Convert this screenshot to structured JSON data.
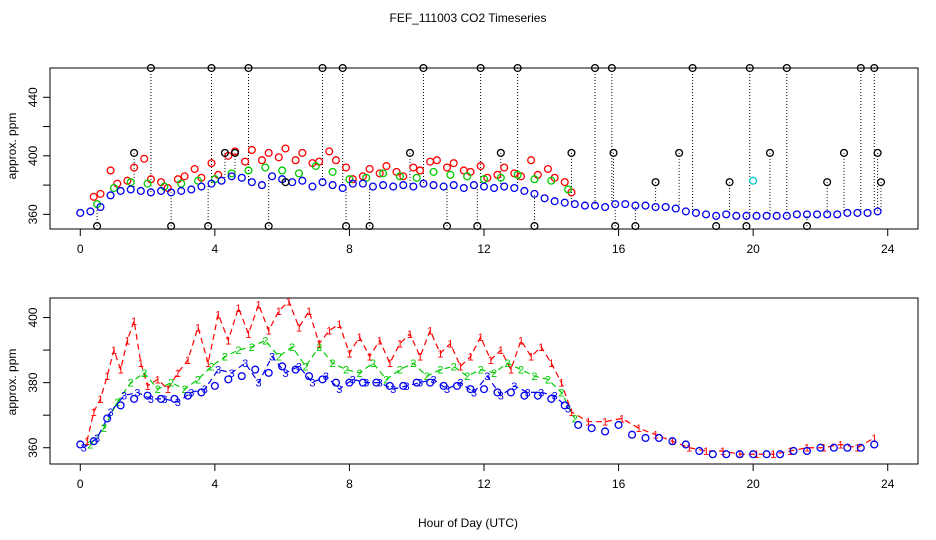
{
  "chart_data": [
    {
      "type": "scatter",
      "panel": "top",
      "title": "FEF_111003  CO2 Timeseries",
      "xlabel": "",
      "ylabel": "approx. ppm",
      "xlim": [
        -0.9,
        24.9
      ],
      "ylim": [
        350,
        460
      ],
      "xticks": [
        0,
        4,
        8,
        12,
        16,
        20,
        24
      ],
      "yticks": [
        360,
        380,
        400,
        420,
        440
      ],
      "yticklabels_shown": [
        "360",
        "400",
        "440"
      ],
      "grid": false,
      "series": [
        {
          "name": "red",
          "color": "#ff0000",
          "marker": "o",
          "x": [
            0.4,
            0.6,
            0.9,
            1.1,
            1.4,
            1.6,
            1.9,
            2.1,
            2.4,
            2.6,
            2.9,
            3.1,
            3.4,
            3.6,
            3.9,
            4.1,
            4.4,
            4.6,
            4.9,
            5.1,
            5.4,
            5.6,
            5.9,
            6.1,
            6.4,
            6.6,
            6.9,
            7.1,
            7.4,
            7.6,
            7.9,
            8.1,
            8.4,
            8.6,
            8.9,
            9.1,
            9.4,
            9.6,
            9.9,
            10.1,
            10.4,
            10.6,
            10.9,
            11.1,
            11.4,
            11.6,
            11.9,
            12.1,
            12.4,
            12.6,
            12.9,
            13.1,
            13.4,
            13.6,
            13.9,
            14.1,
            14.4,
            14.6
          ],
          "y": [
            372,
            374,
            390,
            381,
            383,
            392,
            398,
            384,
            382,
            378,
            384,
            386,
            391,
            385,
            395,
            387,
            400,
            403,
            396,
            404,
            397,
            402,
            399,
            405,
            397,
            402,
            395,
            396,
            403,
            397,
            392,
            384,
            386,
            391,
            388,
            393,
            389,
            386,
            392,
            390,
            396,
            397,
            392,
            395,
            390,
            389,
            393,
            385,
            387,
            392,
            388,
            386,
            397,
            387,
            391,
            385,
            382,
            375
          ]
        },
        {
          "name": "green",
          "color": "#00cc00",
          "marker": "o",
          "x": [
            0.5,
            1.0,
            1.5,
            2.0,
            2.5,
            3.0,
            3.5,
            4.0,
            4.5,
            5.0,
            5.5,
            6.0,
            6.5,
            7.0,
            7.5,
            8.0,
            8.5,
            9.0,
            9.5,
            10.0,
            10.5,
            11.0,
            11.5,
            12.0,
            12.5,
            13.0,
            13.5,
            14.0,
            14.5
          ],
          "y": [
            367,
            378,
            382,
            381,
            379,
            381,
            383,
            384,
            388,
            390,
            392,
            390,
            388,
            393,
            389,
            384,
            385,
            388,
            386,
            385,
            389,
            387,
            386,
            384,
            385,
            387,
            384,
            383,
            377
          ]
        },
        {
          "name": "blue",
          "color": "#0000ee",
          "marker": "o",
          "x": [
            0.0,
            0.3,
            0.6,
            0.9,
            1.2,
            1.5,
            1.8,
            2.1,
            2.4,
            2.7,
            3.0,
            3.3,
            3.6,
            3.9,
            4.2,
            4.5,
            4.8,
            5.1,
            5.4,
            5.7,
            6.0,
            6.3,
            6.6,
            6.9,
            7.2,
            7.5,
            7.8,
            8.1,
            8.4,
            8.7,
            9.0,
            9.3,
            9.6,
            9.9,
            10.2,
            10.5,
            10.8,
            11.1,
            11.4,
            11.7,
            12.0,
            12.3,
            12.6,
            12.9,
            13.2,
            13.5,
            13.8,
            14.1,
            14.4,
            14.7,
            15.0,
            15.3,
            15.6,
            15.9,
            16.2,
            16.5,
            16.8,
            17.1,
            17.4,
            17.7,
            18.0,
            18.3,
            18.6,
            18.9,
            19.2,
            19.5,
            19.8,
            20.1,
            20.4,
            20.7,
            21.0,
            21.3,
            21.6,
            21.9,
            22.2,
            22.5,
            22.8,
            23.1,
            23.4,
            23.7
          ],
          "y": [
            361,
            362,
            365,
            373,
            376,
            377,
            376,
            375,
            376,
            375,
            376,
            377,
            379,
            381,
            383,
            386,
            385,
            382,
            380,
            386,
            384,
            382,
            383,
            379,
            382,
            380,
            378,
            381,
            381,
            379,
            380,
            379,
            380,
            379,
            381,
            380,
            379,
            380,
            378,
            380,
            379,
            378,
            379,
            378,
            376,
            374,
            371,
            369,
            368,
            367,
            366,
            366,
            365,
            367,
            367,
            366,
            366,
            365,
            365,
            364,
            362,
            361,
            360,
            359,
            360,
            359,
            359,
            359,
            359,
            359,
            359,
            360,
            360,
            360,
            360,
            360,
            361,
            361,
            361,
            362
          ]
        },
        {
          "name": "cyan",
          "color": "#00cccc",
          "marker": "o",
          "x": [
            20.0
          ],
          "y": [
            383
          ]
        },
        {
          "name": "black",
          "color": "#000000",
          "marker": "o",
          "x": [
            0.5,
            1.6,
            2.1,
            2.7,
            3.8,
            3.9,
            4.3,
            4.6,
            5.0,
            5.6,
            6.1,
            7.2,
            7.8,
            7.9,
            8.6,
            9.8,
            10.2,
            10.9,
            11.8,
            11.9,
            12.5,
            13.0,
            13.5,
            14.6,
            15.3,
            15.8,
            15.85,
            15.9,
            16.5,
            17.1,
            17.8,
            18.2,
            18.9,
            19.3,
            19.8,
            19.9,
            20.5,
            21.0,
            21.6,
            22.2,
            22.7,
            23.2,
            23.6,
            23.7,
            23.8
          ],
          "y": [
            352,
            402,
            460,
            352,
            352,
            460,
            402,
            402,
            460,
            352,
            382,
            460,
            460,
            352,
            352,
            402,
            460,
            352,
            352,
            460,
            402,
            460,
            352,
            402,
            460,
            460,
            402,
            352,
            352,
            382,
            402,
            460,
            352,
            382,
            352,
            460,
            402,
            460,
            352,
            382,
            402,
            460,
            460,
            402,
            382
          ]
        }
      ]
    },
    {
      "type": "scatter",
      "panel": "bottom",
      "title": "",
      "xlabel": "Hour of Day (UTC)",
      "ylabel": "approx. ppm",
      "xlim": [
        -0.9,
        24.9
      ],
      "ylim": [
        355,
        406
      ],
      "xticks": [
        0,
        4,
        8,
        12,
        16,
        20,
        24
      ],
      "yticks": [
        360,
        370,
        380,
        390,
        400
      ],
      "yticklabels_shown": [
        "360",
        "380",
        "400"
      ],
      "grid": false,
      "series": [
        {
          "name": "1",
          "color": "#ff0000",
          "marker": "1",
          "x": [
            0.2,
            0.4,
            0.6,
            0.8,
            1.0,
            1.2,
            1.4,
            1.6,
            1.8,
            2.0,
            2.3,
            2.6,
            2.9,
            3.2,
            3.5,
            3.8,
            4.1,
            4.4,
            4.7,
            5.0,
            5.3,
            5.6,
            5.9,
            6.2,
            6.5,
            6.8,
            7.1,
            7.4,
            7.7,
            8.0,
            8.3,
            8.6,
            8.9,
            9.2,
            9.5,
            9.8,
            10.1,
            10.4,
            10.7,
            11.0,
            11.3,
            11.6,
            11.9,
            12.2,
            12.5,
            12.8,
            13.1,
            13.4,
            13.7,
            14.0,
            14.3,
            14.6,
            15.1,
            15.6,
            16.1,
            16.6,
            17.1,
            17.6,
            18.1,
            18.6,
            19.1,
            19.6,
            20.1,
            20.6,
            21.1,
            21.6,
            22.1,
            22.6,
            23.1,
            23.6
          ],
          "y": [
            362,
            371,
            375,
            382,
            390,
            384,
            393,
            399,
            386,
            379,
            381,
            378,
            383,
            387,
            397,
            386,
            401,
            393,
            403,
            395,
            404,
            396,
            402,
            405,
            397,
            402,
            392,
            396,
            398,
            389,
            394,
            388,
            393,
            386,
            392,
            395,
            388,
            396,
            389,
            392,
            385,
            388,
            394,
            387,
            390,
            384,
            393,
            388,
            391,
            386,
            380,
            371,
            368,
            368,
            369,
            366,
            364,
            362,
            360,
            359,
            359,
            358,
            358,
            358,
            359,
            360,
            360,
            361,
            360,
            363
          ]
        },
        {
          "name": "2",
          "color": "#00cc00",
          "marker": "2",
          "x": [
            0.3,
            0.7,
            1.1,
            1.5,
            1.9,
            2.3,
            2.7,
            3.1,
            3.5,
            3.9,
            4.3,
            4.7,
            5.1,
            5.5,
            5.9,
            6.3,
            6.7,
            7.1,
            7.5,
            7.9,
            8.3,
            8.7,
            9.1,
            9.5,
            9.9,
            10.3,
            10.7,
            11.1,
            11.5,
            11.9,
            12.3,
            12.7,
            13.1,
            13.5,
            13.9,
            14.3,
            14.7
          ],
          "y": [
            361,
            366,
            374,
            380,
            383,
            378,
            380,
            378,
            381,
            385,
            388,
            390,
            391,
            393,
            388,
            391,
            385,
            391,
            386,
            384,
            383,
            386,
            381,
            384,
            386,
            382,
            384,
            385,
            382,
            384,
            383,
            386,
            384,
            382,
            381,
            377,
            369
          ]
        },
        {
          "name": "3",
          "color": "#0000ee",
          "marker": "3",
          "x": [
            0.1,
            0.5,
            0.9,
            1.3,
            1.7,
            2.1,
            2.5,
            2.9,
            3.3,
            3.7,
            4.1,
            4.5,
            4.9,
            5.3,
            5.7,
            6.1,
            6.5,
            6.9,
            7.3,
            7.7,
            8.1,
            8.5,
            8.9,
            9.3,
            9.7,
            10.1,
            10.5,
            10.9,
            11.3,
            11.7,
            12.1,
            12.5,
            12.9,
            13.3,
            13.7,
            14.1,
            14.5
          ],
          "y": [
            360,
            363,
            371,
            376,
            377,
            375,
            375,
            374,
            377,
            378,
            384,
            383,
            386,
            380,
            388,
            383,
            385,
            380,
            382,
            378,
            381,
            380,
            380,
            378,
            379,
            380,
            381,
            378,
            380,
            377,
            382,
            376,
            379,
            377,
            377,
            376,
            372
          ]
        },
        {
          "name": "blue-circles",
          "color": "#0000ee",
          "marker": "o",
          "x": [
            0.0,
            0.4,
            0.8,
            1.2,
            1.6,
            2.0,
            2.4,
            2.8,
            3.2,
            3.6,
            4.0,
            4.4,
            4.8,
            5.2,
            5.6,
            6.0,
            6.4,
            6.8,
            7.2,
            7.6,
            8.0,
            8.4,
            8.8,
            9.2,
            9.6,
            10.0,
            10.4,
            10.8,
            11.2,
            11.6,
            12.0,
            12.4,
            12.8,
            13.2,
            13.6,
            14.0,
            14.4,
            14.8,
            15.2,
            15.6,
            16.0,
            16.4,
            16.8,
            17.2,
            17.6,
            18.0,
            18.4,
            18.8,
            19.2,
            19.6,
            20.0,
            20.4,
            20.8,
            21.2,
            21.6,
            22.0,
            22.4,
            22.8,
            23.2,
            23.6
          ],
          "y": [
            361,
            362,
            369,
            373,
            375,
            376,
            375,
            375,
            376,
            377,
            379,
            381,
            382,
            384,
            383,
            385,
            384,
            382,
            381,
            380,
            380,
            380,
            380,
            379,
            379,
            380,
            380,
            379,
            379,
            378,
            378,
            377,
            377,
            376,
            376,
            375,
            373,
            367,
            366,
            365,
            367,
            364,
            363,
            363,
            362,
            361,
            359,
            358,
            358,
            358,
            358,
            358,
            358,
            359,
            359,
            360,
            360,
            360,
            360,
            361
          ]
        }
      ]
    }
  ]
}
